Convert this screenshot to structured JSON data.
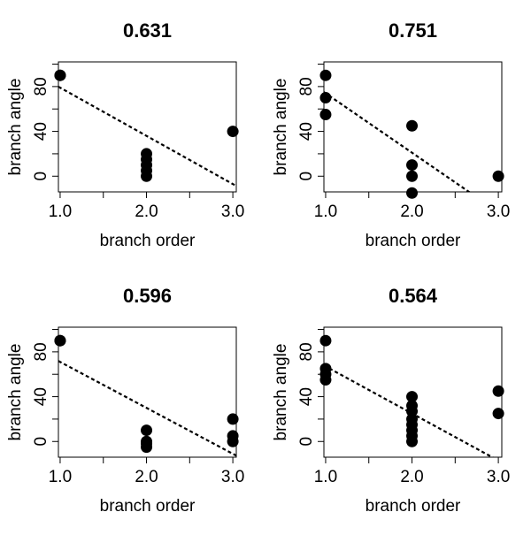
{
  "chart_data": [
    {
      "type": "scatter",
      "title": "0.631",
      "xlabel": "branch order",
      "ylabel": "branch angle",
      "xlim": [
        0.98,
        3.04
      ],
      "ylim": [
        -14,
        102
      ],
      "xticks": [
        1.0,
        1.5,
        2.0,
        2.5,
        3.0
      ],
      "xtick_labels": [
        "1.0",
        "",
        "2.0",
        "",
        "3.0"
      ],
      "yticks": [
        0,
        20,
        40,
        60,
        80,
        100
      ],
      "ytick_labels": [
        "0",
        "",
        "40",
        "",
        "80",
        ""
      ],
      "points": [
        {
          "x": 1.0,
          "y": 90
        },
        {
          "x": 1.0,
          "y": 90
        },
        {
          "x": 2.0,
          "y": 0
        },
        {
          "x": 2.0,
          "y": 5
        },
        {
          "x": 2.0,
          "y": 10
        },
        {
          "x": 2.0,
          "y": 15
        },
        {
          "x": 2.0,
          "y": 20
        },
        {
          "x": 3.0,
          "y": 40
        }
      ],
      "fit_line": {
        "intercept": 122,
        "slope": -43,
        "style": "dashed"
      }
    },
    {
      "type": "scatter",
      "title": "0.751",
      "xlabel": "branch order",
      "ylabel": "branch angle",
      "xlim": [
        0.98,
        3.04
      ],
      "ylim": [
        -14,
        102
      ],
      "xticks": [
        1.0,
        1.5,
        2.0,
        2.5,
        3.0
      ],
      "xtick_labels": [
        "1.0",
        "",
        "2.0",
        "",
        "3.0"
      ],
      "yticks": [
        0,
        20,
        40,
        60,
        80,
        100
      ],
      "ytick_labels": [
        "0",
        "",
        "40",
        "",
        "80",
        ""
      ],
      "points": [
        {
          "x": 1.0,
          "y": 90
        },
        {
          "x": 1.0,
          "y": 70
        },
        {
          "x": 1.0,
          "y": 55
        },
        {
          "x": 2.0,
          "y": 45
        },
        {
          "x": 2.0,
          "y": 10
        },
        {
          "x": 2.0,
          "y": 0
        },
        {
          "x": 2.0,
          "y": -15
        },
        {
          "x": 3.0,
          "y": 0
        }
      ],
      "fit_line": {
        "intercept": 127,
        "slope": -53,
        "style": "dashed"
      }
    },
    {
      "type": "scatter",
      "title": "0.596",
      "xlabel": "branch order",
      "ylabel": "branch angle",
      "xlim": [
        0.98,
        3.04
      ],
      "ylim": [
        -14,
        102
      ],
      "xticks": [
        1.0,
        1.5,
        2.0,
        2.5,
        3.0
      ],
      "xtick_labels": [
        "1.0",
        "",
        "2.0",
        "",
        "3.0"
      ],
      "yticks": [
        0,
        20,
        40,
        60,
        80,
        100
      ],
      "ytick_labels": [
        "0",
        "",
        "40",
        "",
        "80",
        ""
      ],
      "points": [
        {
          "x": 1.0,
          "y": 90
        },
        {
          "x": 1.0,
          "y": 90
        },
        {
          "x": 2.0,
          "y": 10
        },
        {
          "x": 2.0,
          "y": 0
        },
        {
          "x": 2.0,
          "y": -2
        },
        {
          "x": 2.0,
          "y": -5
        },
        {
          "x": 3.0,
          "y": 20
        },
        {
          "x": 3.0,
          "y": 5
        },
        {
          "x": 3.0,
          "y": 0
        }
      ],
      "fit_line": {
        "intercept": 112,
        "slope": -41,
        "style": "dashed"
      }
    },
    {
      "type": "scatter",
      "title": "0.564",
      "xlabel": "branch order",
      "ylabel": "branch angle",
      "xlim": [
        0.98,
        3.04
      ],
      "ylim": [
        -14,
        102
      ],
      "xticks": [
        1.0,
        1.5,
        2.0,
        2.5,
        3.0
      ],
      "xtick_labels": [
        "1.0",
        "",
        "2.0",
        "",
        "3.0"
      ],
      "yticks": [
        0,
        20,
        40,
        60,
        80,
        100
      ],
      "ytick_labels": [
        "0",
        "",
        "40",
        "",
        "80",
        ""
      ],
      "points": [
        {
          "x": 1.0,
          "y": 90
        },
        {
          "x": 1.0,
          "y": 65
        },
        {
          "x": 1.0,
          "y": 60
        },
        {
          "x": 1.0,
          "y": 55
        },
        {
          "x": 2.0,
          "y": 40
        },
        {
          "x": 2.0,
          "y": 32
        },
        {
          "x": 2.0,
          "y": 27
        },
        {
          "x": 2.0,
          "y": 20
        },
        {
          "x": 2.0,
          "y": 15
        },
        {
          "x": 2.0,
          "y": 10
        },
        {
          "x": 2.0,
          "y": 5
        },
        {
          "x": 2.0,
          "y": 0
        },
        {
          "x": 3.0,
          "y": 45
        },
        {
          "x": 3.0,
          "y": 25
        }
      ],
      "fit_line": {
        "intercept": 109,
        "slope": -42,
        "style": "dashed"
      }
    }
  ]
}
